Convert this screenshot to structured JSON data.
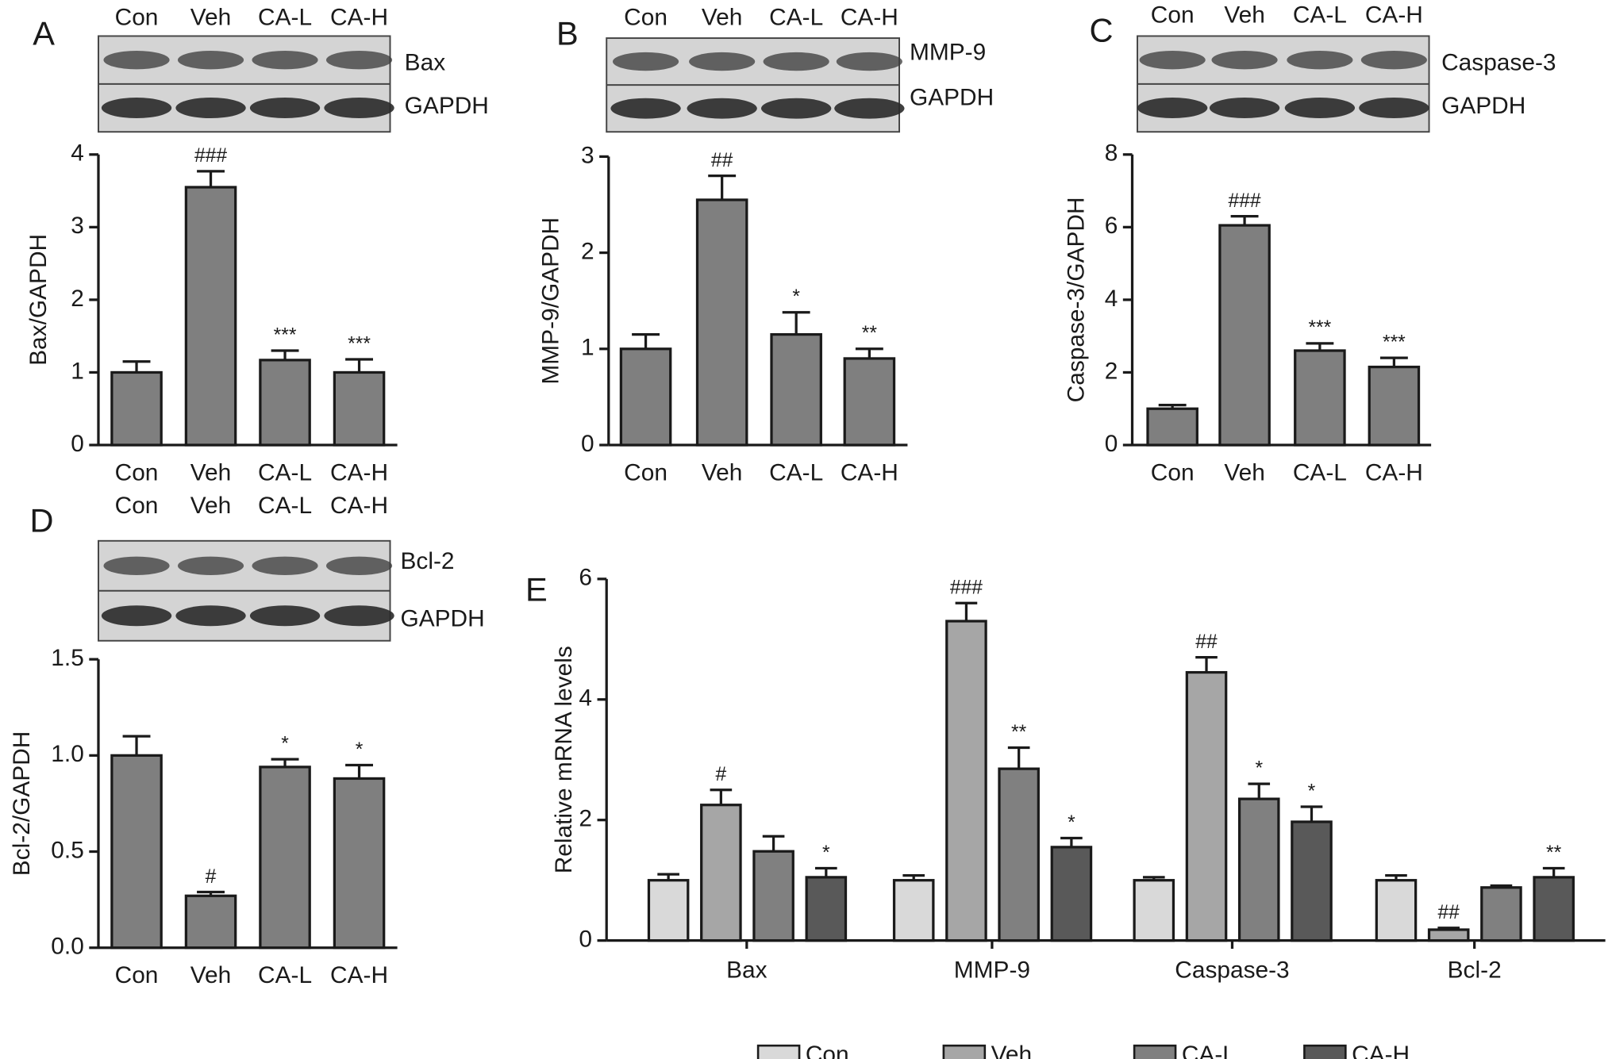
{
  "chart_data": [
    {
      "panel": "A",
      "type": "bar",
      "ylabel": "Bax/GAPDH",
      "blot_proteins": [
        "Bax",
        "GAPDH"
      ],
      "categories": [
        "Con",
        "Veh",
        "CA-L",
        "CA-H"
      ],
      "values": [
        1.0,
        3.55,
        1.17,
        1.0
      ],
      "errors": [
        0.15,
        0.22,
        0.13,
        0.18
      ],
      "annotations": [
        null,
        "###",
        "***",
        "***"
      ],
      "color": "#7f7f7f",
      "ylim": [
        0,
        4
      ],
      "yticks": [
        0,
        1,
        2,
        3,
        4
      ]
    },
    {
      "panel": "B",
      "type": "bar",
      "ylabel": "MMP-9/GAPDH",
      "blot_proteins": [
        "MMP-9",
        "GAPDH"
      ],
      "categories": [
        "Con",
        "Veh",
        "CA-L",
        "CA-H"
      ],
      "values": [
        1.0,
        2.55,
        1.15,
        0.9
      ],
      "errors": [
        0.15,
        0.25,
        0.23,
        0.1
      ],
      "annotations": [
        null,
        "##",
        "*",
        "**"
      ],
      "color": "#7f7f7f",
      "ylim": [
        0,
        3
      ],
      "yticks": [
        0,
        1,
        2,
        3
      ]
    },
    {
      "panel": "C",
      "type": "bar",
      "ylabel": "Caspase-3/GAPDH",
      "blot_proteins": [
        "Caspase-3",
        "GAPDH"
      ],
      "categories": [
        "Con",
        "Veh",
        "CA-L",
        "CA-H"
      ],
      "values": [
        1.0,
        6.05,
        2.6,
        2.15
      ],
      "errors": [
        0.1,
        0.25,
        0.2,
        0.25
      ],
      "annotations": [
        null,
        "###",
        "***",
        "***"
      ],
      "color": "#7f7f7f",
      "ylim": [
        0,
        8
      ],
      "yticks": [
        0,
        2,
        4,
        6,
        8
      ]
    },
    {
      "panel": "D",
      "type": "bar",
      "ylabel": "Bcl-2/GAPDH",
      "blot_proteins": [
        "Bcl-2",
        "GAPDH"
      ],
      "categories": [
        "Con",
        "Veh",
        "CA-L",
        "CA-H"
      ],
      "values": [
        1.0,
        0.27,
        0.94,
        0.88
      ],
      "errors": [
        0.1,
        0.02,
        0.04,
        0.07
      ],
      "annotations": [
        null,
        "#",
        "*",
        "*"
      ],
      "color": "#7f7f7f",
      "ylim": [
        0,
        1.5
      ],
      "yticks": [
        {
          "value": 0,
          "label": "0.0"
        },
        0.5,
        {
          "value": 1,
          "label": "1.0"
        },
        1.5
      ]
    },
    {
      "panel": "E",
      "type": "grouped_bar",
      "ylabel": "Relative mRNA levels",
      "categories": [
        "Bax",
        "MMP-9",
        "Caspase-3",
        "Bcl-2"
      ],
      "ylim": [
        0,
        6
      ],
      "yticks": [
        0,
        2,
        4,
        6
      ],
      "legend": "bottom",
      "series": [
        {
          "name": "Con",
          "color": "#d9d9d9",
          "values": [
            1.0,
            1.0,
            1.0,
            1.0
          ],
          "errors": [
            0.1,
            0.08,
            0.05,
            0.08
          ],
          "annotations": [
            null,
            null,
            null,
            null
          ]
        },
        {
          "name": "Veh",
          "color": "#a6a6a6",
          "values": [
            2.25,
            5.3,
            4.45,
            0.18
          ],
          "errors": [
            0.25,
            0.3,
            0.25,
            0.03
          ],
          "annotations": [
            "#",
            "###",
            "##",
            "##"
          ]
        },
        {
          "name": "CA-L",
          "color": "#808080",
          "values": [
            1.48,
            2.85,
            2.35,
            0.88
          ],
          "errors": [
            0.25,
            0.35,
            0.25,
            0.03
          ],
          "annotations": [
            null,
            "**",
            "*",
            null
          ]
        },
        {
          "name": "CA-H",
          "color": "#595959",
          "values": [
            1.05,
            1.55,
            1.97,
            1.05
          ],
          "errors": [
            0.15,
            0.15,
            0.25,
            0.15
          ],
          "annotations": [
            "*",
            "*",
            "*",
            "**"
          ]
        }
      ]
    }
  ]
}
